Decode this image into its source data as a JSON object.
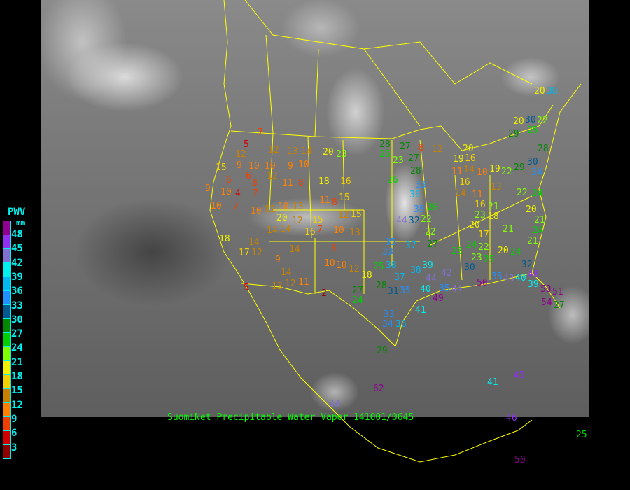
{
  "caption": "SuomiNet Precipitable Water Vapor 141001/0645",
  "legend": {
    "title": "PWV",
    "unit": "mm",
    "ticks": [
      "48",
      "45",
      "42",
      "39",
      "36",
      "33",
      "30",
      "27",
      "24",
      "21",
      "18",
      "15",
      "12",
      "9",
      "6",
      "3"
    ],
    "colors": [
      "#900090",
      "#9030f0",
      "#8070d0",
      "#00f0f0",
      "#00b8f0",
      "#2090ff",
      "#005a90",
      "#008800",
      "#00d000",
      "#80ff00",
      "#f0f000",
      "#f0d000",
      "#c88000",
      "#ff8000",
      "#f04000",
      "#d00000",
      "#8b0000"
    ]
  },
  "map": {
    "background": "grayscale infrared satellite image",
    "border_color": "#ffff00"
  },
  "stations": [
    5,
    7,
    15,
    12,
    9,
    10,
    10,
    6,
    8,
    6,
    4,
    7,
    10,
    10,
    9,
    7,
    10,
    12,
    12,
    13,
    14,
    20,
    23,
    9,
    10,
    12,
    11,
    8,
    18,
    16,
    11,
    8,
    15,
    10,
    13,
    20,
    12,
    15,
    7,
    10,
    13,
    14,
    14,
    16,
    12,
    15,
    14,
    6,
    10,
    10,
    12,
    18,
    17,
    12,
    9,
    14,
    12,
    13,
    11,
    5,
    14,
    2,
    18,
    28,
    27,
    25,
    23,
    27,
    8,
    12,
    20,
    28,
    26,
    33,
    36,
    35,
    26,
    44,
    22,
    32,
    22,
    27,
    37,
    35,
    33,
    25,
    38,
    37,
    39,
    38,
    42,
    44,
    40,
    35,
    31,
    28,
    27,
    24,
    33,
    34,
    36,
    41,
    49,
    44,
    30,
    35,
    25,
    24,
    23,
    25,
    22,
    20,
    24,
    17,
    21,
    20,
    21,
    24,
    21,
    22,
    24,
    13,
    14,
    11,
    16,
    23,
    21,
    18,
    20,
    16,
    19,
    14,
    11,
    16,
    10,
    19,
    22,
    29,
    30,
    34,
    28,
    25,
    29,
    20,
    30,
    22,
    20,
    38,
    40,
    43,
    46,
    39,
    32,
    35,
    50,
    53,
    51,
    54,
    27,
    29,
    62,
    44,
    41,
    45,
    46,
    50,
    25
  ]
}
